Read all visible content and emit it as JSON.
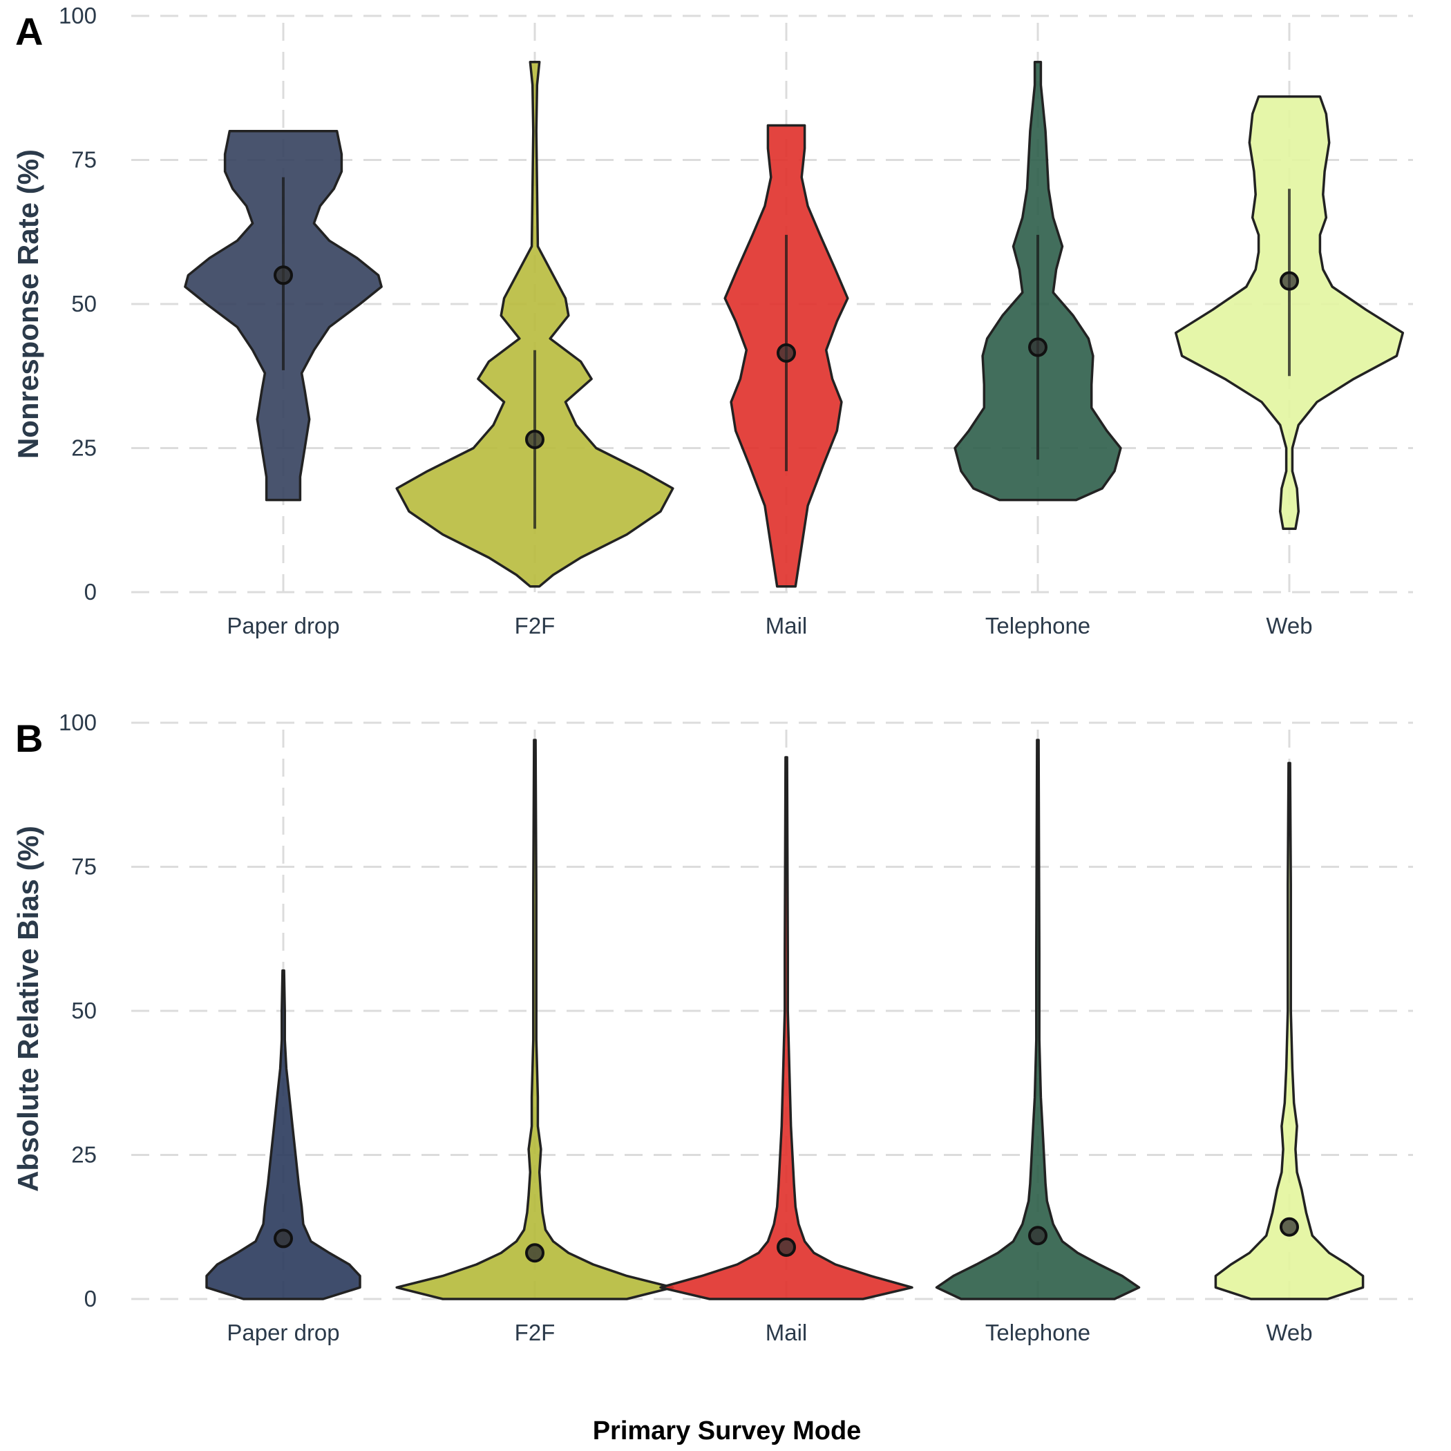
{
  "x_axis_label": "Primary Survey Mode",
  "chart_data": [
    {
      "type": "violin",
      "panel_tag": "A",
      "ylabel": "Nonresponse Rate (%)",
      "ylim": [
        0,
        100
      ],
      "yticks": [
        0,
        25,
        50,
        75,
        100
      ],
      "grid": true,
      "categories": [
        "Paper drop",
        "F2F",
        "Mail",
        "Telephone",
        "Web"
      ],
      "colors": [
        "#35415e",
        "#b8bb3d",
        "#e0302a",
        "#2e5e4a",
        "#e2f5a0"
      ],
      "violins": [
        {
          "min": 16,
          "max": 80,
          "density": [
            [
              16,
              0.11
            ],
            [
              20,
              0.11
            ],
            [
              25,
              0.14
            ],
            [
              30,
              0.17
            ],
            [
              35,
              0.14
            ],
            [
              38,
              0.12
            ],
            [
              42,
              0.2
            ],
            [
              46,
              0.3
            ],
            [
              50,
              0.5
            ],
            [
              53,
              0.64
            ],
            [
              55,
              0.62
            ],
            [
              58,
              0.48
            ],
            [
              61,
              0.3
            ],
            [
              64,
              0.2
            ],
            [
              67,
              0.24
            ],
            [
              70,
              0.33
            ],
            [
              73,
              0.38
            ],
            [
              76,
              0.38
            ],
            [
              80,
              0.35
            ]
          ]
        },
        {
          "min": 1,
          "max": 92,
          "density": [
            [
              1,
              0.03
            ],
            [
              3,
              0.12
            ],
            [
              6,
              0.3
            ],
            [
              10,
              0.6
            ],
            [
              14,
              0.82
            ],
            [
              18,
              0.9
            ],
            [
              21,
              0.7
            ],
            [
              25,
              0.4
            ],
            [
              29,
              0.27
            ],
            [
              33,
              0.2
            ],
            [
              37,
              0.37
            ],
            [
              40,
              0.3
            ],
            [
              44,
              0.1
            ],
            [
              48,
              0.22
            ],
            [
              51,
              0.2
            ],
            [
              55,
              0.12
            ],
            [
              60,
              0.02
            ],
            [
              70,
              0.015
            ],
            [
              80,
              0.01
            ],
            [
              88,
              0.015
            ],
            [
              92,
              0.03
            ]
          ]
        },
        {
          "min": 1,
          "max": 81,
          "density": [
            [
              1,
              0.06
            ],
            [
              8,
              0.1
            ],
            [
              15,
              0.14
            ],
            [
              22,
              0.24
            ],
            [
              28,
              0.33
            ],
            [
              33,
              0.36
            ],
            [
              37,
              0.3
            ],
            [
              42,
              0.26
            ],
            [
              47,
              0.33
            ],
            [
              51,
              0.4
            ],
            [
              56,
              0.32
            ],
            [
              62,
              0.22
            ],
            [
              67,
              0.14
            ],
            [
              72,
              0.1
            ],
            [
              77,
              0.12
            ],
            [
              81,
              0.12
            ]
          ]
        },
        {
          "min": 16,
          "max": 92,
          "density": [
            [
              16,
              0.25
            ],
            [
              18,
              0.42
            ],
            [
              21,
              0.5
            ],
            [
              25,
              0.54
            ],
            [
              28,
              0.45
            ],
            [
              32,
              0.35
            ],
            [
              36,
              0.35
            ],
            [
              41,
              0.36
            ],
            [
              44,
              0.33
            ],
            [
              48,
              0.23
            ],
            [
              52,
              0.1
            ],
            [
              56,
              0.12
            ],
            [
              60,
              0.16
            ],
            [
              65,
              0.1
            ],
            [
              70,
              0.07
            ],
            [
              80,
              0.05
            ],
            [
              88,
              0.02
            ],
            [
              92,
              0.02
            ]
          ]
        },
        {
          "min": 11,
          "max": 86,
          "density": [
            [
              11,
              0.04
            ],
            [
              14,
              0.06
            ],
            [
              18,
              0.05
            ],
            [
              21,
              0.02
            ],
            [
              25,
              0.02
            ],
            [
              29,
              0.06
            ],
            [
              33,
              0.18
            ],
            [
              37,
              0.42
            ],
            [
              41,
              0.7
            ],
            [
              45,
              0.74
            ],
            [
              49,
              0.5
            ],
            [
              53,
              0.28
            ],
            [
              56,
              0.22
            ],
            [
              59,
              0.2
            ],
            [
              62,
              0.2
            ],
            [
              65,
              0.24
            ],
            [
              69,
              0.22
            ],
            [
              73,
              0.23
            ],
            [
              78,
              0.26
            ],
            [
              83,
              0.24
            ],
            [
              86,
              0.2
            ]
          ]
        }
      ],
      "medians": [
        55,
        26.5,
        41.5,
        42.5,
        54
      ],
      "ranges": [
        [
          38.5,
          72
        ],
        [
          11,
          42
        ],
        [
          21,
          62
        ],
        [
          23,
          62
        ],
        [
          37.5,
          70
        ]
      ]
    },
    {
      "type": "violin",
      "panel_tag": "B",
      "ylabel": "Absolute Relative Bias (%)",
      "ylim": [
        0,
        100
      ],
      "yticks": [
        0,
        25,
        50,
        75,
        100
      ],
      "grid": true,
      "categories": [
        "Paper drop",
        "F2F",
        "Mail",
        "Telephone",
        "Web"
      ],
      "colors": [
        "#2a3a5c",
        "#b5ba3a",
        "#e0302a",
        "#2c5e48",
        "#e3f59c"
      ],
      "violins": [
        {
          "min": 0,
          "max": 57,
          "density": [
            [
              0,
              0.26
            ],
            [
              2,
              0.5
            ],
            [
              4,
              0.5
            ],
            [
              6,
              0.43
            ],
            [
              8,
              0.3
            ],
            [
              10,
              0.18
            ],
            [
              13,
              0.13
            ],
            [
              16,
              0.12
            ],
            [
              20,
              0.1
            ],
            [
              25,
              0.08
            ],
            [
              30,
              0.06
            ],
            [
              35,
              0.04
            ],
            [
              40,
              0.02
            ],
            [
              45,
              0.01
            ],
            [
              50,
              0.01
            ],
            [
              57,
              0.005
            ]
          ]
        },
        {
          "min": 0,
          "max": 97,
          "density": [
            [
              0,
              0.6
            ],
            [
              2,
              0.9
            ],
            [
              4,
              0.6
            ],
            [
              6,
              0.38
            ],
            [
              8,
              0.22
            ],
            [
              10,
              0.12
            ],
            [
              12,
              0.07
            ],
            [
              15,
              0.05
            ],
            [
              18,
              0.04
            ],
            [
              22,
              0.03
            ],
            [
              26,
              0.04
            ],
            [
              30,
              0.02
            ],
            [
              35,
              0.02
            ],
            [
              45,
              0.01
            ],
            [
              60,
              0.01
            ],
            [
              70,
              0.01
            ],
            [
              97,
              0.005
            ]
          ]
        },
        {
          "min": 0,
          "max": 94,
          "density": [
            [
              0,
              0.5
            ],
            [
              2,
              0.82
            ],
            [
              4,
              0.55
            ],
            [
              6,
              0.32
            ],
            [
              8,
              0.18
            ],
            [
              10,
              0.12
            ],
            [
              13,
              0.08
            ],
            [
              16,
              0.06
            ],
            [
              20,
              0.05
            ],
            [
              25,
              0.04
            ],
            [
              30,
              0.03
            ],
            [
              40,
              0.02
            ],
            [
              50,
              0.01
            ],
            [
              60,
              0.01
            ],
            [
              94,
              0.005
            ]
          ]
        },
        {
          "min": 0,
          "max": 97,
          "density": [
            [
              0,
              0.5
            ],
            [
              2,
              0.66
            ],
            [
              4,
              0.55
            ],
            [
              6,
              0.4
            ],
            [
              8,
              0.26
            ],
            [
              10,
              0.16
            ],
            [
              13,
              0.1
            ],
            [
              17,
              0.06
            ],
            [
              20,
              0.05
            ],
            [
              25,
              0.04
            ],
            [
              30,
              0.03
            ],
            [
              35,
              0.02
            ],
            [
              45,
              0.01
            ],
            [
              60,
              0.01
            ],
            [
              97,
              0.005
            ]
          ]
        },
        {
          "min": 0,
          "max": 93,
          "density": [
            [
              0,
              0.25
            ],
            [
              2,
              0.48
            ],
            [
              4,
              0.48
            ],
            [
              6,
              0.38
            ],
            [
              8,
              0.26
            ],
            [
              11,
              0.15
            ],
            [
              15,
              0.11
            ],
            [
              19,
              0.08
            ],
            [
              22,
              0.05
            ],
            [
              26,
              0.04
            ],
            [
              30,
              0.05
            ],
            [
              34,
              0.03
            ],
            [
              40,
              0.02
            ],
            [
              50,
              0.01
            ],
            [
              72,
              0.01
            ],
            [
              93,
              0.005
            ]
          ]
        }
      ],
      "medians": [
        10.5,
        8,
        9,
        11,
        12.5
      ],
      "ranges": null
    }
  ]
}
